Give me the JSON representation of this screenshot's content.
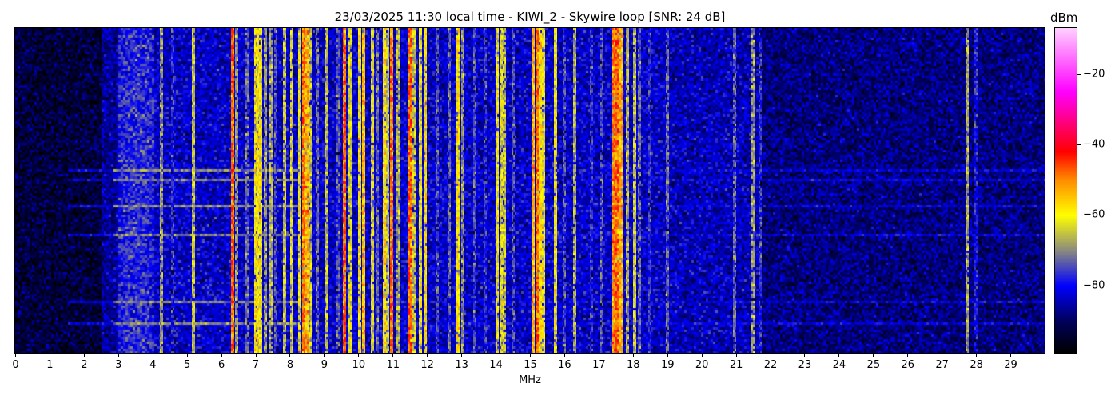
{
  "chart_data": {
    "type": "heatmap",
    "title": "23/03/2025 11:30 local time - KIWI_2 - Skywire loop [SNR: 24 dB]",
    "xlabel": "MHz",
    "xlim": [
      0,
      30
    ],
    "xticks": [
      0,
      1,
      2,
      3,
      4,
      5,
      6,
      7,
      8,
      9,
      10,
      11,
      12,
      13,
      14,
      15,
      16,
      17,
      18,
      19,
      20,
      21,
      22,
      23,
      24,
      25,
      26,
      27,
      28,
      29
    ],
    "colorbar": {
      "label": "dBm",
      "range": [
        -99,
        -7
      ],
      "ticks": [
        -20,
        -40,
        -60,
        -80
      ],
      "colormap_stops": [
        {
          "dbm": -99,
          "color": "#000000"
        },
        {
          "dbm": -90,
          "color": "#00005a"
        },
        {
          "dbm": -80,
          "color": "#0000ff"
        },
        {
          "dbm": -70,
          "color": "#8a8a80"
        },
        {
          "dbm": -60,
          "color": "#ffff00"
        },
        {
          "dbm": -50,
          "color": "#ff8c00"
        },
        {
          "dbm": -42,
          "color": "#ff0000"
        },
        {
          "dbm": -25,
          "color": "#ff00ff"
        },
        {
          "dbm": -7,
          "color": "#ffd0ff"
        }
      ]
    },
    "noise_floor_dbm": [
      {
        "from": 0,
        "to": 2.5,
        "level": -93
      },
      {
        "from": 2.5,
        "to": 3,
        "level": -86
      },
      {
        "from": 3,
        "to": 4,
        "level": -79
      },
      {
        "from": 4,
        "to": 19,
        "level": -83
      },
      {
        "from": 19,
        "to": 21.7,
        "level": -84
      },
      {
        "from": 21.7,
        "to": 30,
        "level": -88
      }
    ],
    "signals_mhz_dbm": [
      [
        4.27,
        -66
      ],
      [
        4.6,
        -75
      ],
      [
        5.2,
        -62
      ],
      [
        6.33,
        -44
      ],
      [
        6.45,
        -66
      ],
      [
        6.75,
        -70
      ],
      [
        7.0,
        -58
      ],
      [
        7.08,
        -55
      ],
      [
        7.15,
        -58
      ],
      [
        7.3,
        -66
      ],
      [
        7.45,
        -64
      ],
      [
        7.6,
        -72
      ],
      [
        7.85,
        -62
      ],
      [
        8.05,
        -60
      ],
      [
        8.3,
        -58
      ],
      [
        8.42,
        -46
      ],
      [
        8.5,
        -50
      ],
      [
        8.6,
        -62
      ],
      [
        8.8,
        -70
      ],
      [
        9.05,
        -62
      ],
      [
        9.4,
        -72
      ],
      [
        9.6,
        -44
      ],
      [
        9.75,
        -60
      ],
      [
        10.05,
        -56
      ],
      [
        10.15,
        -52
      ],
      [
        10.4,
        -60
      ],
      [
        10.55,
        -70
      ],
      [
        10.75,
        -55
      ],
      [
        10.85,
        -62
      ],
      [
        10.97,
        -45
      ],
      [
        11.15,
        -64
      ],
      [
        11.5,
        -44
      ],
      [
        11.62,
        -62
      ],
      [
        11.8,
        -58
      ],
      [
        11.95,
        -56
      ],
      [
        12.3,
        -72
      ],
      [
        12.65,
        -70
      ],
      [
        12.9,
        -56
      ],
      [
        13.05,
        -66
      ],
      [
        13.4,
        -72
      ],
      [
        13.7,
        -74
      ],
      [
        14.05,
        -58
      ],
      [
        14.15,
        -60
      ],
      [
        14.25,
        -62
      ],
      [
        14.5,
        -72
      ],
      [
        15.1,
        -50
      ],
      [
        15.2,
        -45
      ],
      [
        15.3,
        -55
      ],
      [
        15.4,
        -58
      ],
      [
        15.75,
        -58
      ],
      [
        16.0,
        -72
      ],
      [
        16.3,
        -64
      ],
      [
        16.8,
        -74
      ],
      [
        17.1,
        -72
      ],
      [
        17.45,
        -46
      ],
      [
        17.55,
        -44
      ],
      [
        17.65,
        -50
      ],
      [
        17.85,
        -64
      ],
      [
        18.05,
        -62
      ],
      [
        18.2,
        -70
      ],
      [
        18.5,
        -74
      ],
      [
        19.0,
        -70
      ],
      [
        20.97,
        -70
      ],
      [
        21.5,
        -66
      ],
      [
        21.7,
        -74
      ],
      [
        27.75,
        -64
      ],
      [
        28.0,
        -76
      ]
    ],
    "horizontal_interference_mhz": [
      {
        "from": 2.8,
        "to": 8.2,
        "level": -70
      },
      {
        "from": 1.5,
        "to": 30,
        "level": -82
      }
    ]
  }
}
